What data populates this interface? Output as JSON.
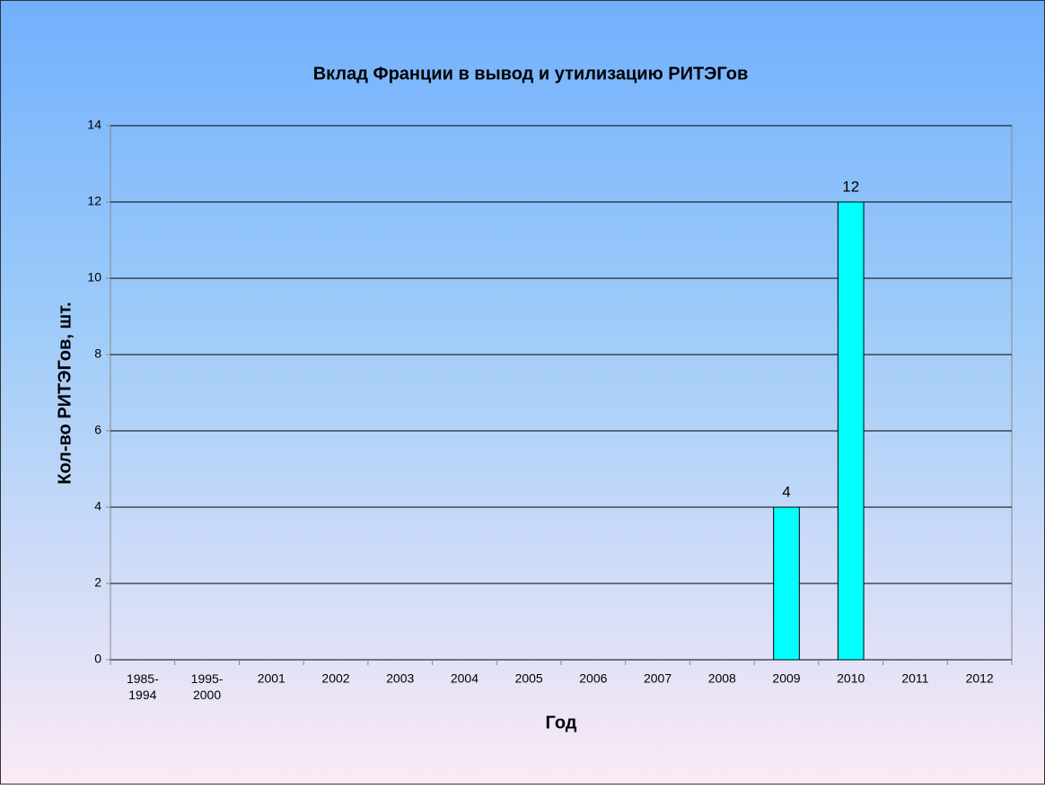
{
  "chart_data": {
    "type": "bar",
    "title": "Вклад Франции в вывод и утилизацию РИТЭГов",
    "x_label": "Год",
    "y_label": "Кол-во РИТЭГов, шт.",
    "categories": [
      "1985-1994",
      "1995-2000",
      "2001",
      "2002",
      "2003",
      "2004",
      "2005",
      "2006",
      "2007",
      "2008",
      "2009",
      "2010",
      "2011",
      "2012"
    ],
    "values": [
      null,
      null,
      null,
      null,
      null,
      null,
      null,
      null,
      null,
      null,
      4,
      12,
      null,
      null
    ],
    "color": "#00ffff",
    "ylim": [
      0,
      14
    ],
    "yticks": [
      0,
      2,
      4,
      6,
      8,
      10,
      12,
      14
    ],
    "grid": true
  }
}
